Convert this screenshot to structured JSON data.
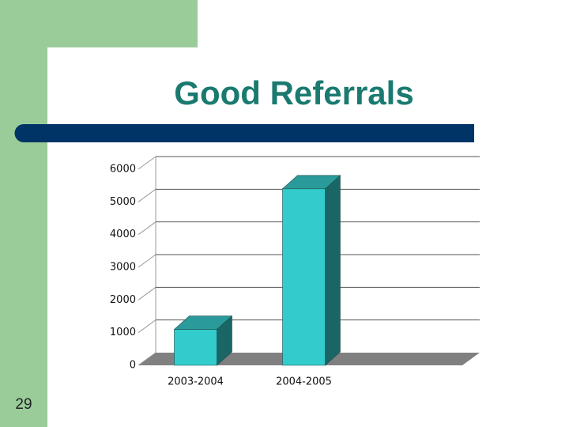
{
  "page_number": "29",
  "chart_data": {
    "type": "bar",
    "title": "Good Referrals",
    "categories": [
      "2003-2004",
      "2004-2005"
    ],
    "values": [
      1100,
      5400
    ],
    "color": "#33cccc",
    "ylim": [
      0,
      6000
    ],
    "yticks": [
      0,
      1000,
      2000,
      3000,
      4000,
      5000,
      6000
    ],
    "grid": true
  }
}
